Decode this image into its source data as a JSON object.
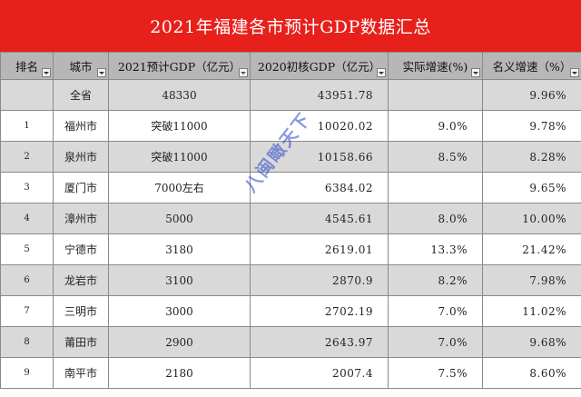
{
  "title": "2021年福建各市预计GDP数据汇总",
  "headers": [
    "排名",
    "城市",
    "2021预计GDP（亿元）",
    "2020初核GDP（亿元）",
    "实际增速(%)",
    "名义增速（%）"
  ],
  "rows": [
    {
      "rank": "",
      "city": "全省",
      "est2021": "48330",
      "gdp2020": "43951.78",
      "real": "",
      "nominal": "9.96%"
    },
    {
      "rank": "1",
      "city": "福州市",
      "est2021": "突破11000",
      "gdp2020": "10020.02",
      "real": "9.0%",
      "nominal": "9.78%"
    },
    {
      "rank": "2",
      "city": "泉州市",
      "est2021": "突破11000",
      "gdp2020": "10158.66",
      "real": "8.5%",
      "nominal": "8.28%"
    },
    {
      "rank": "3",
      "city": "厦门市",
      "est2021": "7000左右",
      "gdp2020": "6384.02",
      "real": "",
      "nominal": "9.65%"
    },
    {
      "rank": "4",
      "city": "漳州市",
      "est2021": "5000",
      "gdp2020": "4545.61",
      "real": "8.0%",
      "nominal": "10.00%"
    },
    {
      "rank": "5",
      "city": "宁德市",
      "est2021": "3180",
      "gdp2020": "2619.01",
      "real": "13.3%",
      "nominal": "21.42%"
    },
    {
      "rank": "6",
      "city": "龙岩市",
      "est2021": "3100",
      "gdp2020": "2870.9",
      "real": "8.2%",
      "nominal": "7.98%"
    },
    {
      "rank": "7",
      "city": "三明市",
      "est2021": "3000",
      "gdp2020": "2702.19",
      "real": "7.0%",
      "nominal": "11.02%"
    },
    {
      "rank": "8",
      "city": "莆田市",
      "est2021": "2900",
      "gdp2020": "2643.97",
      "real": "7.0%",
      "nominal": "9.68%"
    },
    {
      "rank": "9",
      "city": "南平市",
      "est2021": "2180",
      "gdp2020": "2007.4",
      "real": "7.5%",
      "nominal": "8.60%"
    }
  ],
  "watermark": "八闽瞰天下"
}
